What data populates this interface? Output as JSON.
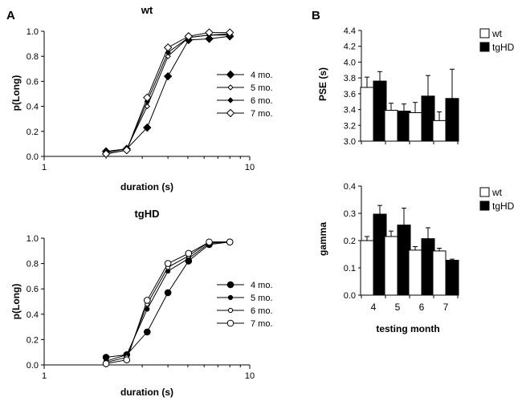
{
  "figure": {
    "panel_a_label": "A",
    "panel_b_label": "B"
  },
  "chart_data": [
    {
      "id": "wt",
      "type": "line",
      "title": "wt",
      "xlabel": "duration (s)",
      "ylabel": "p(Long)",
      "xscale": "log",
      "xlim": [
        1,
        10
      ],
      "ylim": [
        0,
        1
      ],
      "xticks": [
        1,
        10
      ],
      "xtick_labels": [
        "1",
        "10"
      ],
      "yticks": [
        0,
        0.2,
        0.4,
        0.6,
        0.8,
        1.0
      ],
      "ytick_labels": [
        "0.0",
        "0.2",
        "0.4",
        "0.6",
        "0.8",
        "1.0"
      ],
      "x": [
        2,
        2.52,
        3.17,
        4,
        5.04,
        6.35,
        8
      ],
      "legend_position": "right",
      "series": [
        {
          "name": "4 mo.",
          "marker": "diamond-filled",
          "values": [
            0.04,
            0.06,
            0.23,
            0.64,
            0.93,
            0.94,
            0.96
          ]
        },
        {
          "name": "5 mo.",
          "marker": "diamond-open-small",
          "values": [
            0.03,
            0.06,
            0.4,
            0.8,
            0.95,
            0.97,
            0.97
          ]
        },
        {
          "name": "6 mo.",
          "marker": "diamond-filled-small",
          "values": [
            0.02,
            0.05,
            0.44,
            0.83,
            0.95,
            0.97,
            0.98
          ]
        },
        {
          "name": "7 mo.",
          "marker": "diamond-open",
          "values": [
            0.02,
            0.05,
            0.47,
            0.87,
            0.96,
            0.99,
            0.99
          ]
        }
      ]
    },
    {
      "id": "tgHD",
      "type": "line",
      "title": "tgHD",
      "xlabel": "duration (s)",
      "ylabel": "p(Long)",
      "xscale": "log",
      "xlim": [
        1,
        10
      ],
      "ylim": [
        0,
        1
      ],
      "xticks": [
        1,
        10
      ],
      "xtick_labels": [
        "1",
        "10"
      ],
      "yticks": [
        0,
        0.2,
        0.4,
        0.6,
        0.8,
        1.0
      ],
      "ytick_labels": [
        "0.0",
        "0.2",
        "0.4",
        "0.6",
        "0.8",
        "1.0"
      ],
      "x": [
        2,
        2.52,
        3.17,
        4,
        5.04,
        6.35,
        8
      ],
      "legend_position": "right",
      "series": [
        {
          "name": "4 mo.",
          "marker": "circle-filled",
          "values": [
            0.06,
            0.08,
            0.26,
            0.57,
            0.82,
            0.95,
            0.97
          ]
        },
        {
          "name": "5 mo.",
          "marker": "circle-filled-small",
          "values": [
            0.03,
            0.08,
            0.44,
            0.74,
            0.84,
            0.96,
            0.97
          ]
        },
        {
          "name": "6 mo.",
          "marker": "circle-open-small",
          "values": [
            0.02,
            0.06,
            0.48,
            0.77,
            0.86,
            0.97,
            0.97
          ]
        },
        {
          "name": "7 mo.",
          "marker": "circle-open",
          "values": [
            0.01,
            0.04,
            0.51,
            0.8,
            0.88,
            0.97,
            0.97
          ]
        }
      ]
    },
    {
      "id": "pse",
      "type": "bar",
      "title": "",
      "xlabel": "",
      "ylabel": "PSE (s)",
      "ylim": [
        3.0,
        4.4
      ],
      "yticks": [
        3.0,
        3.2,
        3.4,
        3.6,
        3.8,
        4.0,
        4.2,
        4.4
      ],
      "ytick_labels": [
        "3.0",
        "3.2",
        "3.4",
        "3.6",
        "3.8",
        "4.0",
        "4.2",
        "4.4"
      ],
      "categories": [
        "4",
        "5",
        "6",
        "7"
      ],
      "legend_position": "top-right",
      "series": [
        {
          "name": "wt",
          "color": "#ffffff",
          "values": [
            3.68,
            3.39,
            3.36,
            3.26
          ],
          "error": [
            0.13,
            0.09,
            0.13,
            0.11
          ]
        },
        {
          "name": "tgHD",
          "color": "#000000",
          "values": [
            3.76,
            3.38,
            3.57,
            3.54
          ],
          "error": [
            0.12,
            0.09,
            0.26,
            0.37
          ]
        }
      ]
    },
    {
      "id": "gamma",
      "type": "bar",
      "title": "",
      "xlabel": "testing month",
      "ylabel": "gamma",
      "ylim": [
        0,
        0.4
      ],
      "yticks": [
        0,
        0.1,
        0.2,
        0.3,
        0.4
      ],
      "ytick_labels": [
        "0.0",
        "0.1",
        "0.2",
        "0.3",
        "0.4"
      ],
      "categories": [
        "4",
        "5",
        "6",
        "7"
      ],
      "legend_position": "top-right",
      "series": [
        {
          "name": "wt",
          "color": "#ffffff",
          "values": [
            0.2,
            0.215,
            0.165,
            0.162
          ],
          "error": [
            0.015,
            0.02,
            0.013,
            0.01
          ]
        },
        {
          "name": "tgHD",
          "color": "#000000",
          "values": [
            0.297,
            0.257,
            0.207,
            0.128
          ],
          "error": [
            0.032,
            0.062,
            0.04,
            0.004
          ]
        }
      ]
    }
  ]
}
